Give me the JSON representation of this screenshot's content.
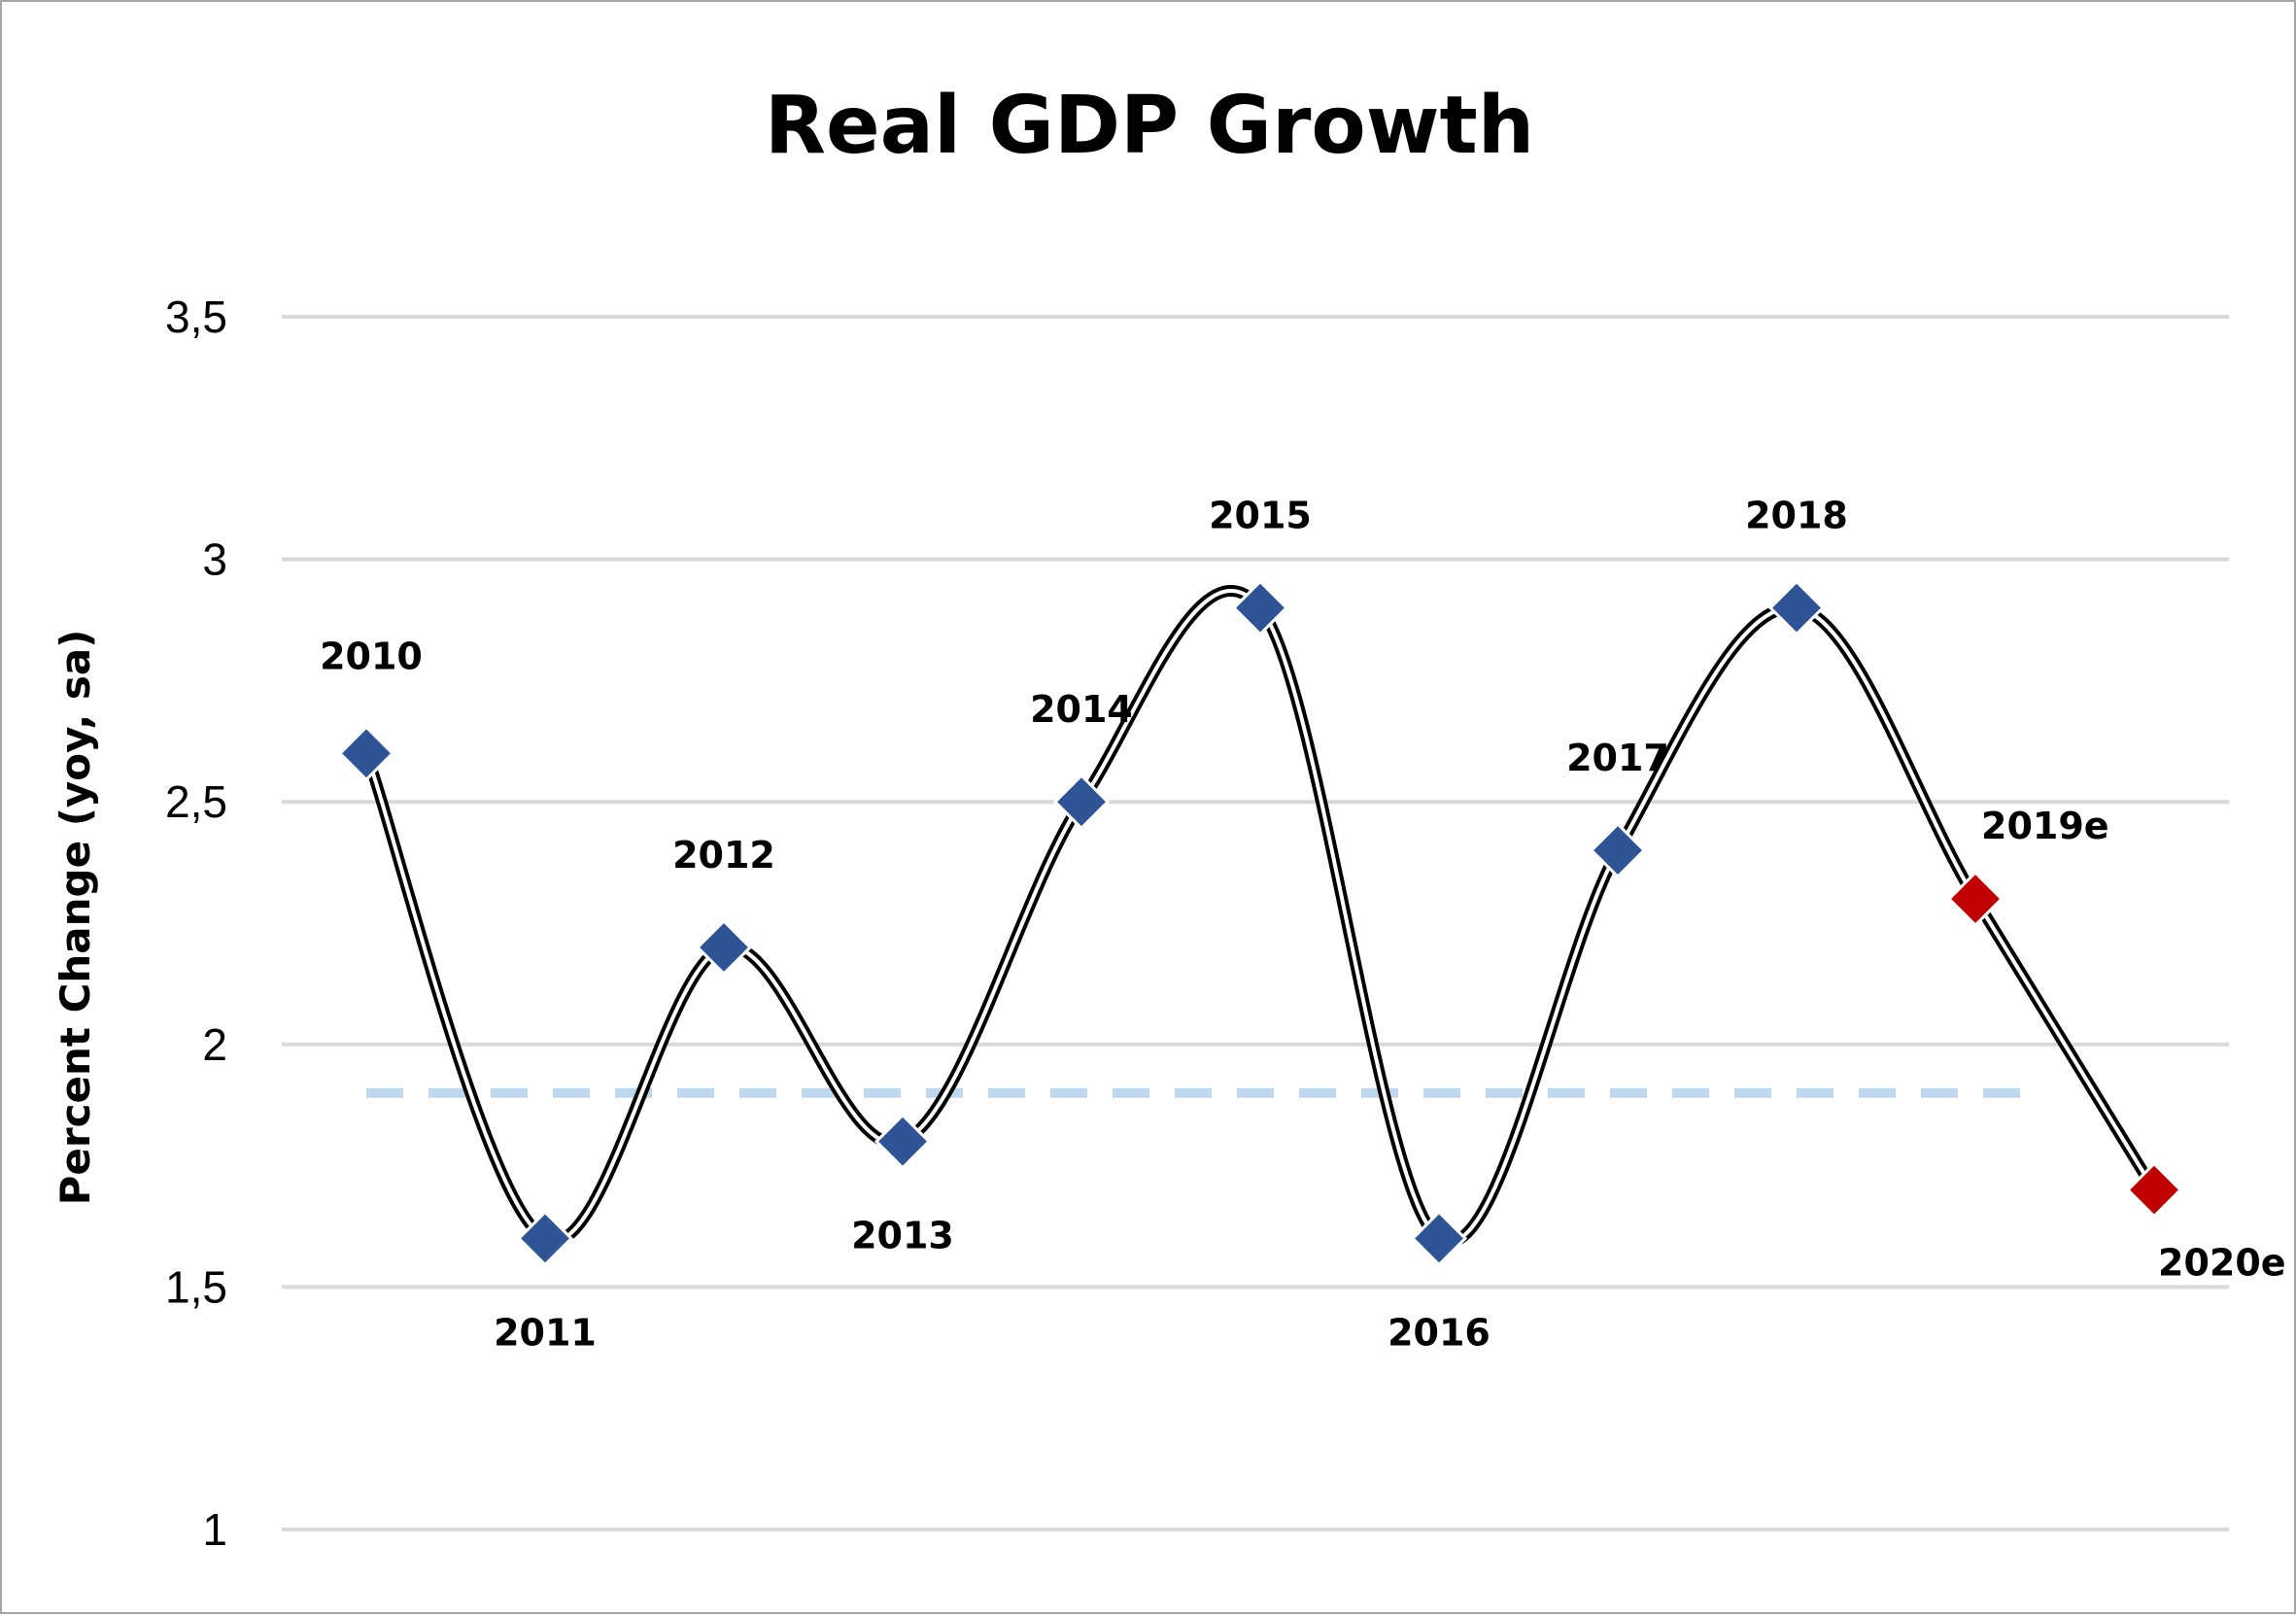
{
  "chart_data": {
    "type": "line",
    "title": "Real GDP Growth",
    "ylabel": "Percent Change  (yoy, sa)",
    "xlabel": "",
    "ylim": [
      1,
      3.5
    ],
    "y_ticks": [
      "1",
      "1,5",
      "2",
      "2,5",
      "3",
      "3,5"
    ],
    "y_tick_values": [
      1,
      1.5,
      2,
      2.5,
      3,
      3.5
    ],
    "grid": true,
    "line_style": "smoothed double line",
    "categories": [
      "2010",
      "2011",
      "2012",
      "2013",
      "2014",
      "2015",
      "2016",
      "2017",
      "2018",
      "2019e",
      "2020e"
    ],
    "values": [
      2.6,
      1.6,
      2.2,
      1.8,
      2.5,
      2.9,
      1.6,
      2.4,
      2.9,
      2.3,
      1.7
    ],
    "point_colors": [
      "#2e5496",
      "#2e5496",
      "#2e5496",
      "#2e5496",
      "#2e5496",
      "#2e5496",
      "#2e5496",
      "#2e5496",
      "#2e5496",
      "#c00000",
      "#c00000"
    ],
    "label_positions": [
      "above",
      "below",
      "above",
      "below",
      "above",
      "above",
      "below",
      "above",
      "above",
      "above",
      "below"
    ],
    "reference_line": {
      "value": 1.9,
      "style": "dashed",
      "color": "#bdd7ee"
    },
    "colors": {
      "grid": "#d9d9d9",
      "actual": "#2e5496",
      "estimate": "#c00000",
      "line": "#000000"
    }
  }
}
